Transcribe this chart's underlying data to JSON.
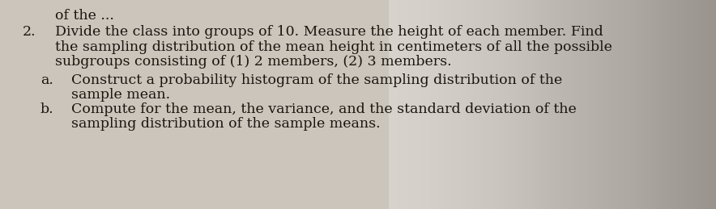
{
  "background_color": "#cbc5bc",
  "right_bg_color": "#b8b0a5",
  "number": "2.",
  "line0": "of the ...",
  "line1": "Divide the class into groups of 10. Measure the height of each member. Find",
  "line2": "the sampling distribution of the mean height in centimeters of all the possible",
  "line3": "subgroups consisting of (1) 2 members, (2) 3 members.",
  "line_a_label": "a.",
  "line_a_1": "Construct a probability histogram of the sampling distribution of the",
  "line_a_2": "sample mean.",
  "line_b_label": "b.",
  "line_b_1": "Compute for the mean, the variance, and the standard deviation of the",
  "line_b_2": "sampling distribution of the sample means.",
  "font_size": 12.5,
  "text_color": "#1c1510",
  "font_family": "DejaVu Serif"
}
